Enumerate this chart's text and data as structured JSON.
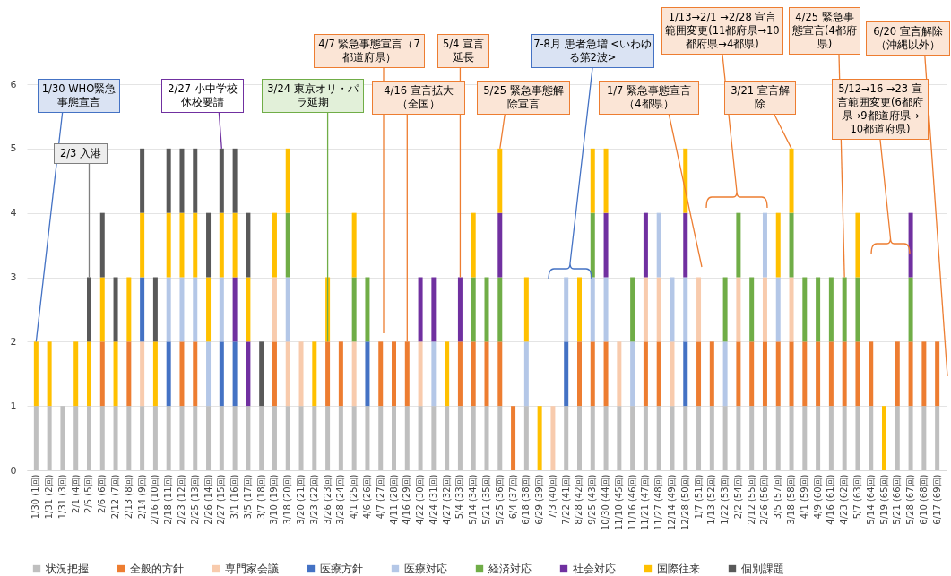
{
  "chart_data": {
    "type": "bar",
    "stacked": true,
    "ylim": [
      0,
      6
    ],
    "yticks": [
      0,
      1,
      2,
      3,
      4,
      5,
      6
    ],
    "grid": "y",
    "legend": "bottom",
    "categories": [
      "1/30 (1回)",
      "1/31 (2回)",
      "1/31 (3回)",
      "2/1 (4回)",
      "2/5 (5回)",
      "2/6 (6回)",
      "2/12 (7回)",
      "2/13 (8回)",
      "2/14 (9回)",
      "2/16 (10回)",
      "2/18 (11回)",
      "2/23 (12回)",
      "2/25 (13回)",
      "2/26 (14回)",
      "2/27 (15回)",
      "3/1 (16回)",
      "3/5 (17回)",
      "3/7 (18回)",
      "3/10 (19回)",
      "3/18 (20回)",
      "3/20 (21回)",
      "3/23 (22回)",
      "3/26 (23回)",
      "3/28 (24回)",
      "4/1 (25回)",
      "4/6 (26回)",
      "4/7 (27回)",
      "4/11 (28回)",
      "4/16 (29回)",
      "4/22 (30回)",
      "4/24 (31回)",
      "4/27 (32回)",
      "5/4 (33回)",
      "5/14 (34回)",
      "5/21 (35回)",
      "5/25 (36回)",
      "6/4 (37回)",
      "6/18 (38回)",
      "6/29 (39回)",
      "7/3 (40回)",
      "7/22 (41回)",
      "8/28 (42回)",
      "9/25 (43回)",
      "10/30 (44回)",
      "11/10 (45回)",
      "11/16 (46回)",
      "11/21 (47回)",
      "11/27 (48回)",
      "12/14 (49回)",
      "12/28 (50回)",
      "1/7 (51回)",
      "1/13 (52回)",
      "1/22 (53回)",
      "2/2 (54回)",
      "2/12 (55回)",
      "2/26 (56回)",
      "3/5 (57回)",
      "3/18 (58回)",
      "4/1 (59回)",
      "4/9 (60回)",
      "4/16 (61回)",
      "4/23 (62回)",
      "5/7 (63回)",
      "5/14 (64回)",
      "5/19 (65回)",
      "5/21 (66回)",
      "5/28 (67回)",
      "6/10 (68回)",
      "6/17 (69回)"
    ],
    "series": [
      {
        "name": "状況把握",
        "color": "#bfbfbf",
        "values": [
          1,
          1,
          1,
          1,
          1,
          1,
          1,
          1,
          1,
          1,
          1,
          1,
          1,
          1,
          1,
          1,
          1,
          1,
          1,
          1,
          1,
          1,
          1,
          1,
          1,
          1,
          1,
          1,
          1,
          1,
          1,
          1,
          1,
          1,
          1,
          1,
          null,
          1,
          null,
          null,
          1,
          1,
          1,
          1,
          1,
          1,
          1,
          1,
          1,
          1,
          1,
          1,
          1,
          1,
          1,
          1,
          1,
          1,
          1,
          1,
          1,
          1,
          1,
          1,
          null,
          1,
          1,
          1,
          1
        ]
      },
      {
        "name": "全般的方針",
        "color": "#ed7d31",
        "values": [
          null,
          null,
          null,
          null,
          null,
          1,
          null,
          1,
          null,
          null,
          null,
          1,
          1,
          null,
          null,
          null,
          null,
          null,
          1,
          null,
          null,
          null,
          1,
          1,
          null,
          null,
          1,
          1,
          1,
          null,
          null,
          null,
          1,
          1,
          1,
          1,
          1,
          null,
          null,
          null,
          null,
          1,
          1,
          1,
          null,
          null,
          1,
          1,
          null,
          null,
          1,
          1,
          null,
          1,
          1,
          1,
          1,
          1,
          1,
          1,
          1,
          1,
          1,
          1,
          null,
          1,
          1,
          1,
          1
        ]
      },
      {
        "name": "専門家会議",
        "color": "#f8cbad",
        "values": [
          null,
          null,
          null,
          null,
          null,
          null,
          null,
          null,
          1,
          null,
          null,
          null,
          null,
          null,
          null,
          null,
          null,
          null,
          1,
          1,
          1,
          null,
          null,
          null,
          1,
          null,
          null,
          null,
          null,
          1,
          null,
          null,
          null,
          null,
          null,
          null,
          null,
          null,
          null,
          1,
          null,
          null,
          null,
          null,
          1,
          null,
          1,
          1,
          1,
          null,
          1,
          null,
          null,
          1,
          null,
          1,
          null,
          1,
          null,
          null,
          null,
          null,
          null,
          null,
          null,
          null,
          null,
          null,
          null
        ]
      },
      {
        "name": "医療方針",
        "color": "#4472c4",
        "values": [
          null,
          null,
          null,
          null,
          null,
          null,
          null,
          null,
          1,
          null,
          1,
          null,
          null,
          null,
          1,
          1,
          null,
          null,
          null,
          null,
          null,
          null,
          null,
          null,
          null,
          1,
          null,
          null,
          null,
          null,
          null,
          null,
          null,
          null,
          null,
          null,
          null,
          null,
          null,
          null,
          1,
          null,
          null,
          null,
          null,
          null,
          null,
          null,
          null,
          1,
          null,
          null,
          null,
          null,
          null,
          null,
          null,
          null,
          null,
          null,
          null,
          null,
          null,
          null,
          null,
          null,
          null,
          null,
          null
        ]
      },
      {
        "name": "医療対応",
        "color": "#b4c7e7",
        "values": [
          null,
          null,
          null,
          null,
          null,
          null,
          null,
          null,
          null,
          null,
          1,
          1,
          1,
          1,
          1,
          null,
          null,
          null,
          null,
          1,
          null,
          null,
          null,
          null,
          null,
          null,
          null,
          null,
          null,
          null,
          1,
          null,
          null,
          null,
          null,
          null,
          null,
          1,
          null,
          null,
          1,
          null,
          1,
          1,
          null,
          1,
          null,
          1,
          1,
          1,
          null,
          null,
          1,
          null,
          null,
          1,
          1,
          null,
          null,
          null,
          null,
          null,
          null,
          null,
          null,
          null,
          null,
          null,
          null
        ]
      },
      {
        "name": "経済対応",
        "color": "#70ad47",
        "values": [
          null,
          null,
          null,
          null,
          null,
          null,
          null,
          null,
          null,
          null,
          null,
          null,
          null,
          null,
          null,
          null,
          null,
          null,
          null,
          1,
          null,
          null,
          null,
          null,
          1,
          1,
          null,
          null,
          null,
          null,
          null,
          null,
          null,
          1,
          1,
          1,
          null,
          null,
          null,
          null,
          null,
          null,
          1,
          null,
          null,
          1,
          null,
          null,
          null,
          null,
          null,
          null,
          1,
          1,
          1,
          null,
          null,
          1,
          1,
          1,
          1,
          1,
          1,
          null,
          null,
          null,
          1,
          null,
          null
        ]
      },
      {
        "name": "社会対応",
        "color": "#7030a0",
        "values": [
          null,
          null,
          null,
          null,
          null,
          null,
          null,
          null,
          null,
          null,
          null,
          null,
          null,
          null,
          null,
          1,
          1,
          null,
          null,
          null,
          null,
          null,
          null,
          null,
          null,
          null,
          null,
          null,
          null,
          1,
          1,
          null,
          1,
          null,
          null,
          1,
          null,
          null,
          null,
          null,
          null,
          null,
          null,
          1,
          null,
          null,
          1,
          null,
          null,
          1,
          null,
          null,
          null,
          null,
          null,
          null,
          null,
          null,
          null,
          null,
          null,
          null,
          null,
          null,
          null,
          null,
          1,
          null,
          null
        ]
      },
      {
        "name": "国際往来",
        "color": "#ffc000",
        "values": [
          1,
          1,
          null,
          1,
          1,
          1,
          1,
          1,
          1,
          1,
          1,
          1,
          1,
          1,
          1,
          1,
          1,
          null,
          1,
          1,
          null,
          1,
          1,
          null,
          1,
          null,
          null,
          null,
          null,
          null,
          null,
          1,
          null,
          1,
          null,
          1,
          null,
          1,
          1,
          null,
          null,
          1,
          1,
          1,
          null,
          null,
          null,
          null,
          null,
          1,
          null,
          null,
          null,
          null,
          null,
          null,
          1,
          1,
          null,
          null,
          null,
          null,
          1,
          null,
          1,
          null,
          null,
          null,
          null
        ]
      },
      {
        "name": "個別課題",
        "color": "#595959",
        "values": [
          null,
          null,
          null,
          null,
          1,
          1,
          1,
          null,
          1,
          1,
          1,
          1,
          1,
          1,
          1,
          1,
          1,
          1,
          null,
          null,
          null,
          null,
          null,
          null,
          null,
          null,
          null,
          null,
          null,
          null,
          null,
          null,
          null,
          null,
          null,
          null,
          null,
          null,
          null,
          null,
          null,
          null,
          null,
          null,
          null,
          null,
          null,
          null,
          null,
          null,
          null,
          null,
          null,
          null,
          null,
          null,
          null,
          null,
          null,
          null,
          null,
          null,
          null,
          null,
          null,
          null,
          null,
          null,
          null
        ]
      }
    ],
    "annotations": [
      {
        "text": "1/30 WHO緊急事態宣言",
        "x": "1/30 (1回)",
        "y": 2
      },
      {
        "text": "2/3 入港",
        "x": "2/5 (5回)",
        "y": 3
      },
      {
        "text": "2/27 小中学校休校要請",
        "x": "2/27 (15回)",
        "y": 5
      },
      {
        "text": "3/24 東京オリ・パラ延期",
        "x": "3/26 (23回)",
        "y": 2
      },
      "4/7 緊急事態宣言（7都道府県）",
      {
        "text": "5/4 宣言延長",
        "x": "5/4 (33回)",
        "y": 3
      },
      {
        "text": "4/16 宣言拡大（全国）",
        "x": "4/16 (29回)",
        "y": 2
      },
      {
        "text": "5/25 緊急事態解除宣言",
        "x": "5/25 (36回)",
        "y": 5
      },
      "7-8月 患者急増 <いわゆる第2波>",
      "1/7 緊急事態宣言（4都県）",
      "1/13→2/1 →2/28 宣言範囲変更(11都府県→10都府県→4都県)",
      {
        "text": "3/21 宣言解除",
        "x": "3/18 (58回)",
        "y": 5
      },
      {
        "text": "4/25 緊急事態宣言(4都府県)",
        "x": "4/23 (62回)",
        "y": 3
      },
      "5/12→16 →23 宣言範囲変更(6都府県→9都道府県→ 10都道府県)",
      "6/20 宣言解除（沖縄以外）"
    ]
  }
}
